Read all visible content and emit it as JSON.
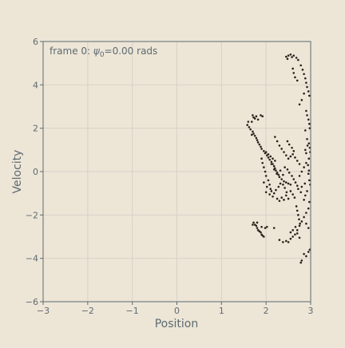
{
  "colors": {
    "figure_background": "#ede5d6",
    "axes_background": "#ede5d6",
    "grid": "#d8d1c8",
    "spine": "#5d6b72",
    "tick_text": "#5d6b72",
    "label_text": "#5d6b72",
    "point": "#2b211b"
  },
  "annotation": {
    "prefix": "frame 0: ",
    "symbol": "ψ",
    "subscript": "0",
    "suffix": "=0.00 rads"
  },
  "chart_data": {
    "type": "scatter",
    "title": "",
    "xlabel": "Position",
    "ylabel": "Velocity",
    "xlim": [
      -3,
      3
    ],
    "ylim": [
      -6,
      6
    ],
    "grid": true,
    "x_ticks": [
      -3,
      -2,
      -1,
      0,
      1,
      2,
      3
    ],
    "x_tick_labels": [
      "−3",
      "−2",
      "−1",
      "0",
      "1",
      "2",
      "3"
    ],
    "y_ticks": [
      -6,
      -4,
      -2,
      0,
      2,
      4,
      6
    ],
    "y_tick_labels": [
      "−6",
      "−4",
      "−2",
      "0",
      "2",
      "4",
      "6"
    ],
    "series": [
      {
        "points": [
          [
            2.45,
            5.3
          ],
          [
            2.5,
            5.35
          ],
          [
            2.55,
            5.4
          ],
          [
            2.62,
            5.35
          ],
          [
            2.68,
            5.25
          ],
          [
            2.72,
            5.15
          ],
          [
            2.48,
            5.2
          ],
          [
            2.58,
            5.28
          ],
          [
            2.6,
            4.75
          ],
          [
            2.62,
            4.55
          ],
          [
            2.65,
            4.35
          ],
          [
            2.7,
            4.2
          ],
          [
            2.78,
            4.9
          ],
          [
            2.82,
            4.7
          ],
          [
            2.85,
            4.5
          ],
          [
            2.88,
            4.3
          ],
          [
            2.9,
            4.1
          ],
          [
            2.92,
            3.9
          ],
          [
            2.95,
            3.7
          ],
          [
            2.97,
            3.5
          ],
          [
            2.85,
            3.6
          ],
          [
            2.8,
            3.3
          ],
          [
            2.75,
            3.1
          ],
          [
            2.9,
            2.8
          ],
          [
            2.92,
            2.6
          ],
          [
            2.95,
            2.4
          ],
          [
            2.97,
            2.2
          ],
          [
            2.98,
            2.0
          ],
          [
            2.88,
            1.9
          ],
          [
            2.92,
            1.5
          ],
          [
            2.96,
            1.3
          ],
          [
            2.98,
            1.1
          ],
          [
            2.99,
            0.9
          ],
          [
            2.96,
            0.6
          ],
          [
            2.9,
            0.4
          ],
          [
            2.85,
            0.2
          ],
          [
            2.8,
            0.0
          ],
          [
            2.75,
            -0.2
          ],
          [
            2.95,
            -0.1
          ],
          [
            2.97,
            -0.4
          ],
          [
            2.99,
            -0.6
          ],
          [
            2.92,
            -0.9
          ],
          [
            2.88,
            -1.1
          ],
          [
            2.85,
            -1.3
          ],
          [
            2.97,
            -1.4
          ],
          [
            2.95,
            -1.7
          ],
          [
            2.9,
            -1.9
          ],
          [
            2.85,
            -2.1
          ],
          [
            2.8,
            -2.3
          ],
          [
            2.75,
            -2.5
          ],
          [
            2.9,
            -2.4
          ],
          [
            2.95,
            -2.6
          ],
          [
            2.7,
            -2.7
          ],
          [
            2.65,
            -2.9
          ],
          [
            2.6,
            -3.0
          ],
          [
            2.55,
            -3.1
          ],
          [
            2.45,
            -3.2
          ],
          [
            2.38,
            -3.25
          ],
          [
            2.3,
            -3.15
          ],
          [
            2.5,
            -3.25
          ],
          [
            2.7,
            -2.85
          ],
          [
            2.75,
            -3.05
          ],
          [
            2.85,
            -3.8
          ],
          [
            2.9,
            -3.9
          ],
          [
            2.95,
            -3.7
          ],
          [
            2.98,
            -3.6
          ],
          [
            2.8,
            -4.1
          ],
          [
            2.78,
            -4.2
          ],
          [
            1.7,
            2.6
          ],
          [
            1.72,
            2.5
          ],
          [
            1.75,
            2.45
          ],
          [
            1.78,
            2.55
          ],
          [
            1.82,
            2.4
          ],
          [
            1.88,
            2.6
          ],
          [
            1.92,
            2.55
          ],
          [
            1.68,
            2.3
          ],
          [
            1.6,
            2.3
          ],
          [
            1.58,
            2.15
          ],
          [
            1.62,
            2.05
          ],
          [
            1.65,
            1.95
          ],
          [
            1.7,
            1.85
          ],
          [
            1.72,
            1.75
          ],
          [
            1.75,
            1.65
          ],
          [
            1.68,
            1.7
          ],
          [
            1.78,
            1.55
          ],
          [
            1.8,
            1.45
          ],
          [
            1.82,
            1.35
          ],
          [
            1.85,
            1.25
          ],
          [
            1.88,
            1.15
          ],
          [
            1.9,
            1.05
          ],
          [
            1.95,
            0.95
          ],
          [
            1.98,
            0.85
          ],
          [
            2.02,
            0.75
          ],
          [
            2.05,
            0.65
          ],
          [
            2.08,
            0.55
          ],
          [
            2.12,
            0.45
          ],
          [
            2.15,
            0.35
          ],
          [
            2.18,
            0.25
          ],
          [
            2.2,
            0.15
          ],
          [
            2.22,
            0.05
          ],
          [
            2.25,
            -0.05
          ],
          [
            2.28,
            -0.15
          ],
          [
            2.3,
            -0.25
          ],
          [
            2.35,
            -0.35
          ],
          [
            2.4,
            -0.45
          ],
          [
            2.45,
            -0.5
          ],
          [
            2.5,
            -0.55
          ],
          [
            2.55,
            -0.6
          ],
          [
            2.0,
            0.9
          ],
          [
            2.05,
            0.8
          ],
          [
            2.1,
            0.7
          ],
          [
            2.15,
            0.6
          ],
          [
            2.2,
            0.5
          ],
          [
            2.12,
            0.35
          ],
          [
            2.18,
            0.1
          ],
          [
            2.24,
            -0.1
          ],
          [
            1.9,
            0.6
          ],
          [
            1.92,
            0.4
          ],
          [
            1.95,
            0.2
          ],
          [
            1.98,
            0.0
          ],
          [
            2.0,
            -0.2
          ],
          [
            2.05,
            -0.4
          ],
          [
            2.08,
            -0.6
          ],
          [
            2.1,
            -0.8
          ],
          [
            2.12,
            -0.9
          ],
          [
            2.18,
            -1.0
          ],
          [
            2.22,
            -0.85
          ],
          [
            2.28,
            -0.7
          ],
          [
            2.32,
            -0.55
          ],
          [
            2.38,
            -0.6
          ],
          [
            2.42,
            -0.75
          ],
          [
            2.46,
            -0.95
          ],
          [
            2.2,
            1.6
          ],
          [
            2.25,
            1.4
          ],
          [
            2.3,
            1.2
          ],
          [
            2.35,
            1.05
          ],
          [
            2.4,
            0.9
          ],
          [
            2.45,
            0.75
          ],
          [
            2.5,
            0.6
          ],
          [
            2.55,
            0.7
          ],
          [
            2.6,
            0.8
          ],
          [
            2.65,
            0.65
          ],
          [
            2.7,
            0.5
          ],
          [
            2.75,
            0.35
          ],
          [
            2.62,
            0.95
          ],
          [
            2.58,
            1.1
          ],
          [
            2.52,
            1.25
          ],
          [
            2.48,
            1.4
          ],
          [
            2.42,
            0.2
          ],
          [
            2.48,
            0.1
          ],
          [
            2.52,
            -0.05
          ],
          [
            2.58,
            -0.2
          ],
          [
            2.62,
            -0.35
          ],
          [
            2.66,
            -0.5
          ],
          [
            2.7,
            -0.65
          ],
          [
            2.72,
            -0.8
          ],
          [
            2.55,
            -0.9
          ],
          [
            2.6,
            -1.05
          ],
          [
            2.64,
            -1.2
          ],
          [
            2.5,
            -1.25
          ],
          [
            2.45,
            -1.1
          ],
          [
            2.4,
            -1.3
          ],
          [
            2.35,
            -1.2
          ],
          [
            2.3,
            -1.35
          ],
          [
            2.25,
            -1.25
          ],
          [
            2.15,
            -1.15
          ],
          [
            2.08,
            -1.05
          ],
          [
            2.0,
            -0.95
          ],
          [
            2.02,
            -0.7
          ],
          [
            1.95,
            -0.5
          ],
          [
            2.38,
            -0.15
          ],
          [
            2.32,
            0.05
          ],
          [
            2.68,
            -1.6
          ],
          [
            2.7,
            -1.8
          ],
          [
            2.72,
            -2.0
          ],
          [
            2.74,
            -2.2
          ],
          [
            2.76,
            -2.4
          ],
          [
            2.66,
            -2.55
          ],
          [
            2.6,
            -2.7
          ],
          [
            2.55,
            -2.8
          ],
          [
            1.72,
            -2.35
          ],
          [
            1.75,
            -2.45
          ],
          [
            1.78,
            -2.5
          ],
          [
            1.8,
            -2.6
          ],
          [
            1.82,
            -2.7
          ],
          [
            1.85,
            -2.75
          ],
          [
            1.88,
            -2.8
          ],
          [
            1.9,
            -2.9
          ],
          [
            1.92,
            -2.95
          ],
          [
            1.95,
            -3.0
          ],
          [
            1.98,
            -2.6
          ],
          [
            2.02,
            -2.55
          ],
          [
            2.18,
            -2.6
          ],
          [
            1.7,
            -2.45
          ],
          [
            1.8,
            -2.35
          ],
          [
            1.9,
            -2.55
          ],
          [
            2.9,
            0.85
          ],
          [
            2.88,
            1.0
          ],
          [
            2.93,
            1.2
          ],
          [
            2.94,
            0.3
          ],
          [
            2.96,
            0.05
          ],
          [
            2.87,
            -0.55
          ],
          [
            2.8,
            -0.7
          ],
          [
            2.78,
            -0.95
          ]
        ]
      }
    ]
  }
}
